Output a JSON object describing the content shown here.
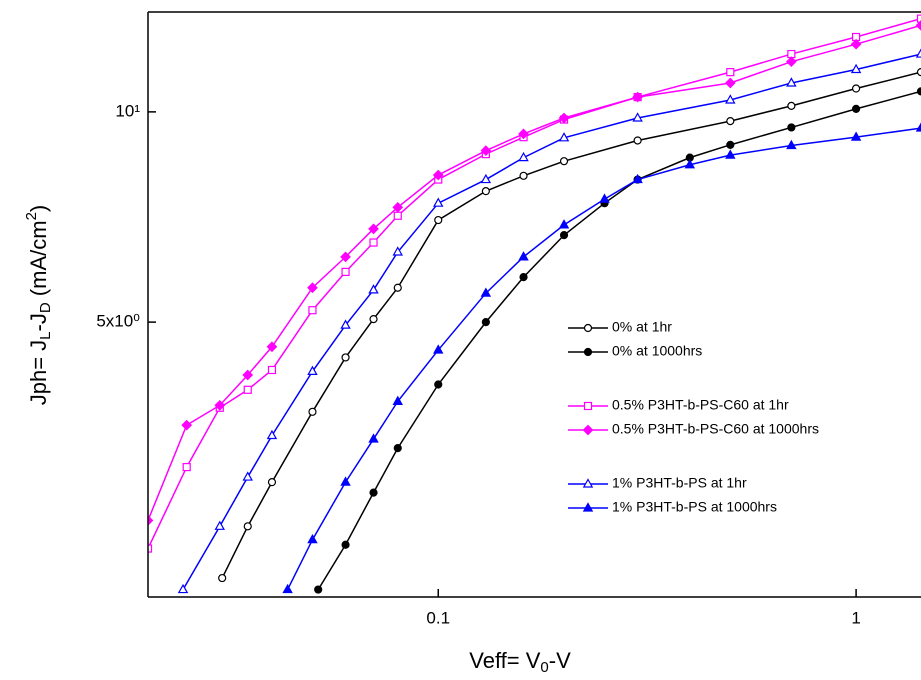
{
  "chart_data": {
    "type": "line",
    "x_label": [
      "Veff= V",
      "0",
      "-V"
    ],
    "y_label": [
      "Jph= J",
      "L",
      "-J",
      "D",
      " (mA/cm",
      "2",
      ")"
    ],
    "xscale": "log",
    "yscale": "log",
    "xlim": [
      0.0202,
      1.43
    ],
    "ylim": [
      2.02,
      13.9
    ],
    "xticks": [
      0.1,
      1
    ],
    "yticks": [
      {
        "value": 5,
        "label": "5x10⁰"
      },
      {
        "value": 10,
        "label": "10¹"
      }
    ],
    "legend": "right",
    "series": [
      {
        "name": "0% at 1hr",
        "color": "#000000",
        "marker": "circle",
        "filled": false,
        "x": [
          0.0304,
          0.035,
          0.04,
          0.05,
          0.06,
          0.07,
          0.08,
          0.1,
          0.13,
          0.16,
          0.2,
          0.3,
          0.5,
          0.7,
          1.0,
          1.43
        ],
        "values": [
          2.15,
          2.55,
          2.95,
          3.72,
          4.45,
          5.05,
          5.6,
          7.0,
          7.7,
          8.1,
          8.5,
          9.1,
          9.7,
          10.2,
          10.8,
          11.4
        ]
      },
      {
        "name": "0% at 1000hrs",
        "color": "#000000",
        "marker": "circle",
        "filled": true,
        "x": [
          0.0516,
          0.06,
          0.07,
          0.08,
          0.1,
          0.13,
          0.16,
          0.2,
          0.25,
          0.3,
          0.4,
          0.5,
          0.7,
          1.0,
          1.43
        ],
        "values": [
          2.07,
          2.4,
          2.85,
          3.3,
          4.07,
          5.0,
          5.8,
          6.66,
          7.4,
          8.0,
          8.6,
          8.97,
          9.5,
          10.1,
          10.7
        ]
      },
      {
        "name": "0.5% P3HT-b-PS-C60 at 1hr",
        "color": "#ff00ff",
        "marker": "square",
        "filled": false,
        "x": [
          0.0202,
          0.025,
          0.03,
          0.035,
          0.04,
          0.05,
          0.06,
          0.07,
          0.08,
          0.1,
          0.13,
          0.16,
          0.2,
          0.3,
          0.5,
          0.7,
          1.0,
          1.43
        ],
        "values": [
          2.37,
          3.1,
          3.77,
          4.0,
          4.27,
          5.2,
          5.9,
          6.5,
          7.1,
          8.0,
          8.7,
          9.2,
          9.75,
          10.5,
          11.4,
          12.1,
          12.8,
          13.6
        ]
      },
      {
        "name": "0.5% P3HT-b-PS-C60 at 1000hrs",
        "color": "#ff00ff",
        "marker": "diamond",
        "filled": true,
        "x": [
          0.0202,
          0.025,
          0.03,
          0.035,
          0.04,
          0.05,
          0.06,
          0.07,
          0.08,
          0.1,
          0.13,
          0.16,
          0.2,
          0.3,
          0.5,
          0.7,
          1.0,
          1.43
        ],
        "values": [
          2.6,
          3.56,
          3.8,
          4.2,
          4.61,
          5.6,
          6.2,
          6.8,
          7.3,
          8.12,
          8.8,
          9.3,
          9.8,
          10.5,
          11.0,
          11.8,
          12.5,
          13.3
        ]
      },
      {
        "name": "1% P3HT-b-PS at 1hr",
        "color": "#0000ff",
        "marker": "triangle",
        "filled": false,
        "x": [
          0.0245,
          0.03,
          0.035,
          0.04,
          0.05,
          0.06,
          0.07,
          0.08,
          0.1,
          0.13,
          0.16,
          0.2,
          0.3,
          0.5,
          0.7,
          1.0,
          1.43
        ],
        "values": [
          2.07,
          2.55,
          3.0,
          3.44,
          4.25,
          4.95,
          5.56,
          6.3,
          7.4,
          8.0,
          8.6,
          9.18,
          9.8,
          10.4,
          11.0,
          11.5,
          12.1
        ]
      },
      {
        "name": "1% P3HT-b-PS at 1000hrs",
        "color": "#0000ff",
        "marker": "triangle",
        "filled": true,
        "x": [
          0.0436,
          0.05,
          0.06,
          0.07,
          0.08,
          0.1,
          0.13,
          0.16,
          0.2,
          0.25,
          0.3,
          0.4,
          0.5,
          0.7,
          1.0,
          1.43
        ],
        "values": [
          2.07,
          2.44,
          2.95,
          3.4,
          3.85,
          4.56,
          5.5,
          6.2,
          6.89,
          7.5,
          8.0,
          8.4,
          8.67,
          8.95,
          9.2,
          9.48
        ]
      }
    ]
  }
}
